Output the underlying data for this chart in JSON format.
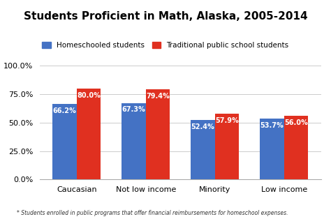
{
  "title": "Students Proficient in Math, Alaska, 2005-2014",
  "categories": [
    "Caucasian",
    "Not low income",
    "Minority",
    "Low income"
  ],
  "homeschool_values": [
    66.2,
    67.3,
    52.4,
    53.7
  ],
  "traditional_values": [
    80.0,
    79.4,
    57.9,
    56.0
  ],
  "homeschool_color": "#4472C4",
  "traditional_color": "#E03020",
  "legend_labels": [
    "Homeschooled students",
    "Traditional public school students"
  ],
  "ylabel_ticks": [
    0.0,
    25.0,
    50.0,
    75.0,
    100.0
  ],
  "ylabel_labels": [
    "0.0%",
    "25.0%",
    "50.0%",
    "75.0%",
    "100.0%"
  ],
  "footnote": "* Students enrolled in public programs that offer financial reimbursements for homeschool expenses.",
  "ylim": [
    0,
    100
  ],
  "bar_width": 0.35,
  "background_color": "#ffffff"
}
